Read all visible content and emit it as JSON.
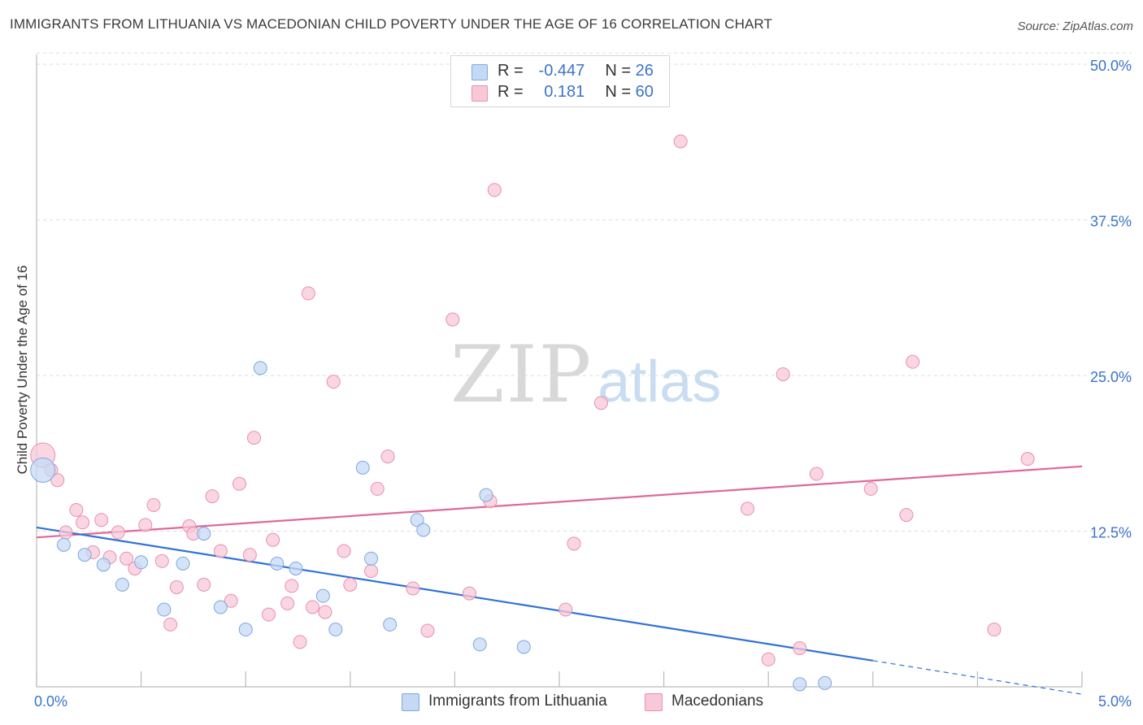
{
  "title": "IMMIGRANTS FROM LITHUANIA VS MACEDONIAN CHILD POVERTY UNDER THE AGE OF 16 CORRELATION CHART",
  "source": "Source: ZipAtlas.com",
  "watermark": {
    "zip": "ZIP",
    "atlas": "atlas"
  },
  "legend": {
    "series1": {
      "r_label": "R =",
      "r_value": "-0.447",
      "n_label": "N =",
      "n_value": "26"
    },
    "series2": {
      "r_label": "R =",
      "r_value": "0.181",
      "n_label": "N =",
      "n_value": "60"
    }
  },
  "colors": {
    "blue_fill": "#c5d9f5",
    "blue_stroke": "#7da7e0",
    "blue_line": "#2f72d6",
    "pink_fill": "#f8c8d8",
    "pink_stroke": "#e98fae",
    "pink_line": "#e0689a",
    "tick_text": "#3b74c9",
    "grid": "#dddddd"
  },
  "chart_data": {
    "type": "scatter",
    "title": "IMMIGRANTS FROM LITHUANIA VS MACEDONIAN CHILD POVERTY UNDER THE AGE OF 16 CORRELATION CHART",
    "xlabel": "",
    "ylabel": "Child Poverty Under the Age of 16",
    "xlim": [
      0,
      5
    ],
    "ylim": [
      0,
      50
    ],
    "x_tick_labels": [
      "0.0%",
      "5.0%"
    ],
    "x_tick_label_values": [
      0,
      5
    ],
    "x_minor_ticks": [
      0,
      0.5,
      1,
      1.5,
      2,
      2.5,
      3,
      3.5,
      4,
      4.5,
      5
    ],
    "y_ticks": [
      12.5,
      25,
      37.5,
      50
    ],
    "y_tick_labels": [
      "12.5%",
      "25.0%",
      "37.5%",
      "50.0%"
    ],
    "grid": true,
    "legend_position": "top-center",
    "series": [
      {
        "name": "Immigrants from Lithuania",
        "color": "blue",
        "r": -0.447,
        "n": 26,
        "trend": {
          "x0": 0,
          "y0": 12.8,
          "x1": 4.0,
          "y1": 2.1,
          "dashed_to_x": 5.0,
          "dashed_to_y": -0.6
        },
        "points": [
          {
            "x": 0.03,
            "y": 17.4,
            "size": "large"
          },
          {
            "x": 0.13,
            "y": 11.4
          },
          {
            "x": 0.23,
            "y": 10.6
          },
          {
            "x": 0.32,
            "y": 9.8
          },
          {
            "x": 0.41,
            "y": 8.2
          },
          {
            "x": 0.5,
            "y": 10.0
          },
          {
            "x": 0.61,
            "y": 6.2
          },
          {
            "x": 0.7,
            "y": 9.9
          },
          {
            "x": 0.8,
            "y": 12.3
          },
          {
            "x": 0.88,
            "y": 6.4
          },
          {
            "x": 1.0,
            "y": 4.6
          },
          {
            "x": 1.07,
            "y": 25.6
          },
          {
            "x": 1.15,
            "y": 9.9
          },
          {
            "x": 1.24,
            "y": 9.5
          },
          {
            "x": 1.37,
            "y": 7.3
          },
          {
            "x": 1.43,
            "y": 4.6
          },
          {
            "x": 1.56,
            "y": 17.6
          },
          {
            "x": 1.6,
            "y": 10.3
          },
          {
            "x": 1.69,
            "y": 5.0
          },
          {
            "x": 1.82,
            "y": 13.4
          },
          {
            "x": 1.85,
            "y": 12.6
          },
          {
            "x": 2.12,
            "y": 3.4
          },
          {
            "x": 2.15,
            "y": 15.4
          },
          {
            "x": 2.33,
            "y": 3.2
          },
          {
            "x": 3.65,
            "y": 0.2
          },
          {
            "x": 3.77,
            "y": 0.3
          }
        ]
      },
      {
        "name": "Macedonians",
        "color": "pink",
        "r": 0.181,
        "n": 60,
        "trend": {
          "x0": 0,
          "y0": 12.0,
          "x1": 5.0,
          "y1": 17.7
        },
        "points": [
          {
            "x": 0.03,
            "y": 18.6,
            "size": "large"
          },
          {
            "x": 0.07,
            "y": 17.4
          },
          {
            "x": 0.1,
            "y": 16.6
          },
          {
            "x": 0.14,
            "y": 12.4
          },
          {
            "x": 0.19,
            "y": 14.2
          },
          {
            "x": 0.22,
            "y": 13.2
          },
          {
            "x": 0.27,
            "y": 10.8
          },
          {
            "x": 0.31,
            "y": 13.4
          },
          {
            "x": 0.35,
            "y": 10.4
          },
          {
            "x": 0.39,
            "y": 12.4
          },
          {
            "x": 0.43,
            "y": 10.3
          },
          {
            "x": 0.47,
            "y": 9.5
          },
          {
            "x": 0.52,
            "y": 13.0
          },
          {
            "x": 0.56,
            "y": 14.6
          },
          {
            "x": 0.6,
            "y": 10.1
          },
          {
            "x": 0.64,
            "y": 5.0
          },
          {
            "x": 0.67,
            "y": 8.0
          },
          {
            "x": 0.73,
            "y": 12.9
          },
          {
            "x": 0.75,
            "y": 12.3
          },
          {
            "x": 0.8,
            "y": 8.2
          },
          {
            "x": 0.84,
            "y": 15.3
          },
          {
            "x": 0.88,
            "y": 10.9
          },
          {
            "x": 0.93,
            "y": 6.9
          },
          {
            "x": 0.97,
            "y": 16.3
          },
          {
            "x": 1.02,
            "y": 10.6
          },
          {
            "x": 1.04,
            "y": 20.0
          },
          {
            "x": 1.11,
            "y": 5.8
          },
          {
            "x": 1.13,
            "y": 11.8
          },
          {
            "x": 1.2,
            "y": 6.7
          },
          {
            "x": 1.22,
            "y": 8.1
          },
          {
            "x": 1.26,
            "y": 3.6
          },
          {
            "x": 1.3,
            "y": 31.6
          },
          {
            "x": 1.32,
            "y": 6.4
          },
          {
            "x": 1.38,
            "y": 6.0
          },
          {
            "x": 1.42,
            "y": 24.5
          },
          {
            "x": 1.47,
            "y": 10.9
          },
          {
            "x": 1.5,
            "y": 8.2
          },
          {
            "x": 1.6,
            "y": 9.3
          },
          {
            "x": 1.63,
            "y": 15.9
          },
          {
            "x": 1.68,
            "y": 18.5
          },
          {
            "x": 1.8,
            "y": 7.9
          },
          {
            "x": 1.87,
            "y": 4.5
          },
          {
            "x": 1.99,
            "y": 29.5
          },
          {
            "x": 2.07,
            "y": 7.5
          },
          {
            "x": 2.17,
            "y": 14.9
          },
          {
            "x": 2.19,
            "y": 39.9
          },
          {
            "x": 2.53,
            "y": 6.2
          },
          {
            "x": 2.57,
            "y": 11.5
          },
          {
            "x": 2.7,
            "y": 22.8
          },
          {
            "x": 3.08,
            "y": 43.8
          },
          {
            "x": 3.4,
            "y": 14.3
          },
          {
            "x": 3.5,
            "y": 2.2
          },
          {
            "x": 3.57,
            "y": 25.1
          },
          {
            "x": 3.65,
            "y": 3.1
          },
          {
            "x": 3.73,
            "y": 17.1
          },
          {
            "x": 3.99,
            "y": 15.9
          },
          {
            "x": 4.16,
            "y": 13.8
          },
          {
            "x": 4.19,
            "y": 26.1
          },
          {
            "x": 4.58,
            "y": 4.6
          },
          {
            "x": 4.74,
            "y": 18.3
          }
        ]
      }
    ]
  }
}
